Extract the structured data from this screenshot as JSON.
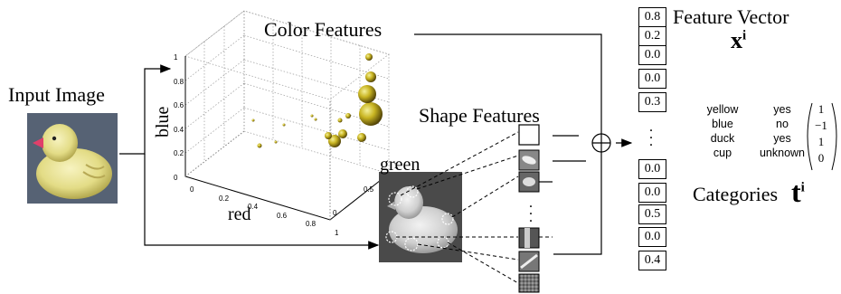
{
  "labels": {
    "input_image": "Input Image",
    "color_features": "Color Features",
    "shape_features": "Shape Features",
    "feature_vector": "Feature Vector",
    "x_symbol": "x",
    "x_superscript": "i",
    "categories": "Categories",
    "t_symbol": "t",
    "t_superscript": "i",
    "axis_blue": "blue",
    "axis_red": "red",
    "axis_green": "green"
  },
  "plot_ticks": {
    "vertical": [
      "1",
      "0.8",
      "0.6",
      "0.4",
      "0.2",
      "0"
    ],
    "red": [
      "0",
      "0.2",
      "0.4",
      "0.6",
      "0.8",
      "1"
    ],
    "green": [
      "0",
      "0.5",
      "1"
    ]
  },
  "feature_vector_top": [
    "0.8",
    "0.2",
    "0.0",
    "0.0",
    "0.3"
  ],
  "feature_vector_bottom": [
    "0.0",
    "0.0",
    "0.5",
    "0.0",
    "0.4"
  ],
  "categories": [
    {
      "name": "yellow",
      "value": "yes"
    },
    {
      "name": "blue",
      "value": "no"
    },
    {
      "name": "duck",
      "value": "yes"
    },
    {
      "name": "cup",
      "value": "unknown"
    }
  ],
  "target_vector": [
    "1",
    "−1",
    "1",
    "0"
  ],
  "operator_symbol": "⊕"
}
